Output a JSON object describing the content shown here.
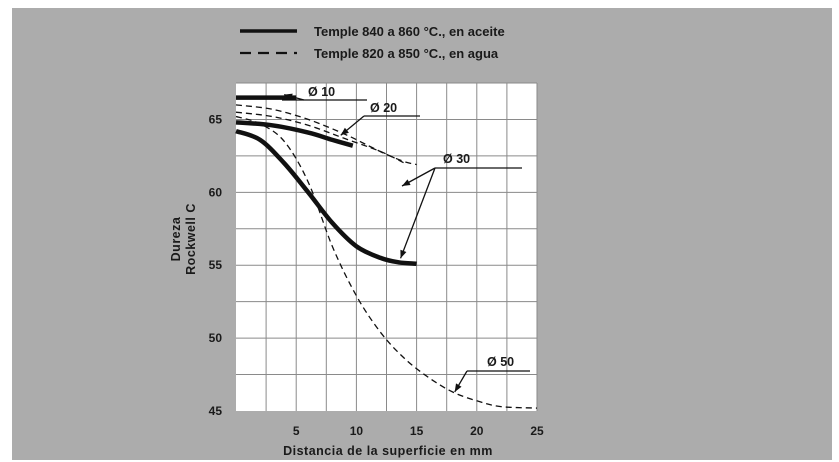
{
  "chart_data": {
    "type": "line",
    "xlabel": "Distancia de la superficie en mm",
    "ylabel_line1": "Dureza",
    "ylabel_line2": "Rockwell C",
    "xlim": [
      0,
      25
    ],
    "ylim": [
      45,
      67.5
    ],
    "x_ticks": [
      "5",
      "10",
      "15",
      "20",
      "25"
    ],
    "y_ticks": [
      "45",
      "50",
      "55",
      "60",
      "65"
    ],
    "grid": true,
    "legend_position": "top",
    "legend": [
      {
        "label": "Temple 840 a 860 °C., en aceite",
        "style": "solid"
      },
      {
        "label": "Temple 820 a 850 °C., en  agua",
        "style": "dashed"
      }
    ],
    "series": [
      {
        "group": "aceite",
        "diameter": "Ø 10",
        "style": "solid",
        "x": [
          0,
          5
        ],
        "y": [
          66.5,
          66.5
        ]
      },
      {
        "group": "aceite",
        "diameter": "Ø 20",
        "style": "solid",
        "x": [
          0,
          3,
          6,
          8,
          9.7
        ],
        "y": [
          64.8,
          64.6,
          64.1,
          63.6,
          63.2
        ]
      },
      {
        "group": "aceite",
        "diameter": "Ø 30",
        "style": "solid",
        "x": [
          0,
          2,
          4,
          6,
          8,
          10,
          12,
          13.5,
          15
        ],
        "y": [
          64.2,
          63.6,
          62.0,
          60.0,
          57.9,
          56.3,
          55.5,
          55.2,
          55.1
        ]
      },
      {
        "group": "agua",
        "diameter": "Ø 20",
        "style": "dashed",
        "x": [
          0,
          3,
          6,
          9,
          11,
          12.5,
          14,
          15
        ],
        "y": [
          66.0,
          65.7,
          65.0,
          64.0,
          63.2,
          62.6,
          62.1,
          61.9
        ]
      },
      {
        "group": "agua",
        "diameter": "Ø 30",
        "style": "dashed",
        "x": [
          0,
          3,
          6,
          9,
          12,
          14
        ],
        "y": [
          65.5,
          65.2,
          64.6,
          63.7,
          62.8,
          62.0
        ]
      },
      {
        "group": "agua",
        "diameter": "Ø 50",
        "style": "dashed",
        "x": [
          0,
          2,
          4,
          6,
          8,
          10,
          12,
          14,
          16,
          18,
          20,
          22,
          25
        ],
        "y": [
          65.2,
          64.7,
          63.5,
          60.7,
          56.3,
          52.9,
          50.4,
          48.6,
          47.3,
          46.3,
          45.7,
          45.3,
          45.2
        ]
      }
    ],
    "annotations": [
      {
        "text": "Ø 10",
        "target_x": 4.5,
        "target_y": 66.5
      },
      {
        "text": "Ø 20",
        "target_x": 8.7,
        "target_y": 63.5
      },
      {
        "text": "Ø 30",
        "target_x": 14.0,
        "target_y": 55.2
      },
      {
        "text": "Ø 50",
        "target_x": 18.0,
        "target_y": 46.1
      }
    ]
  }
}
